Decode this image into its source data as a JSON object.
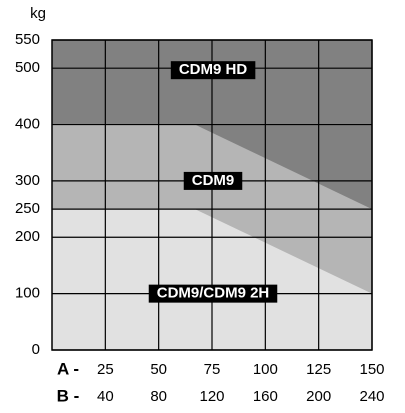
{
  "chart_data": {
    "type": "area",
    "y_label": "kg",
    "ylim": [
      0,
      550
    ],
    "yticks": [
      0,
      100,
      200,
      250,
      300,
      400,
      500,
      550
    ],
    "xlim": [
      0,
      150
    ],
    "xticks": [
      25,
      50,
      75,
      100,
      125,
      150
    ],
    "x_row_label": "A -",
    "x2lim": [
      0,
      240
    ],
    "x2ticks": [
      40,
      80,
      120,
      160,
      200,
      240
    ],
    "x2_row_label": "B -",
    "grid": true,
    "series": [
      {
        "name": "CDM9 HD",
        "color": "#818181",
        "x": [
          0,
          150
        ],
        "values": [
          550,
          550
        ]
      },
      {
        "name": "CDM9",
        "color": "#b5b5b5",
        "x": [
          0,
          67,
          150
        ],
        "values": [
          400,
          400,
          250
        ]
      },
      {
        "name": "CDM9/CDM9 2H",
        "color": "#e1e1e1",
        "x": [
          0,
          67,
          150
        ],
        "values": [
          250,
          250,
          100
        ]
      }
    ]
  }
}
